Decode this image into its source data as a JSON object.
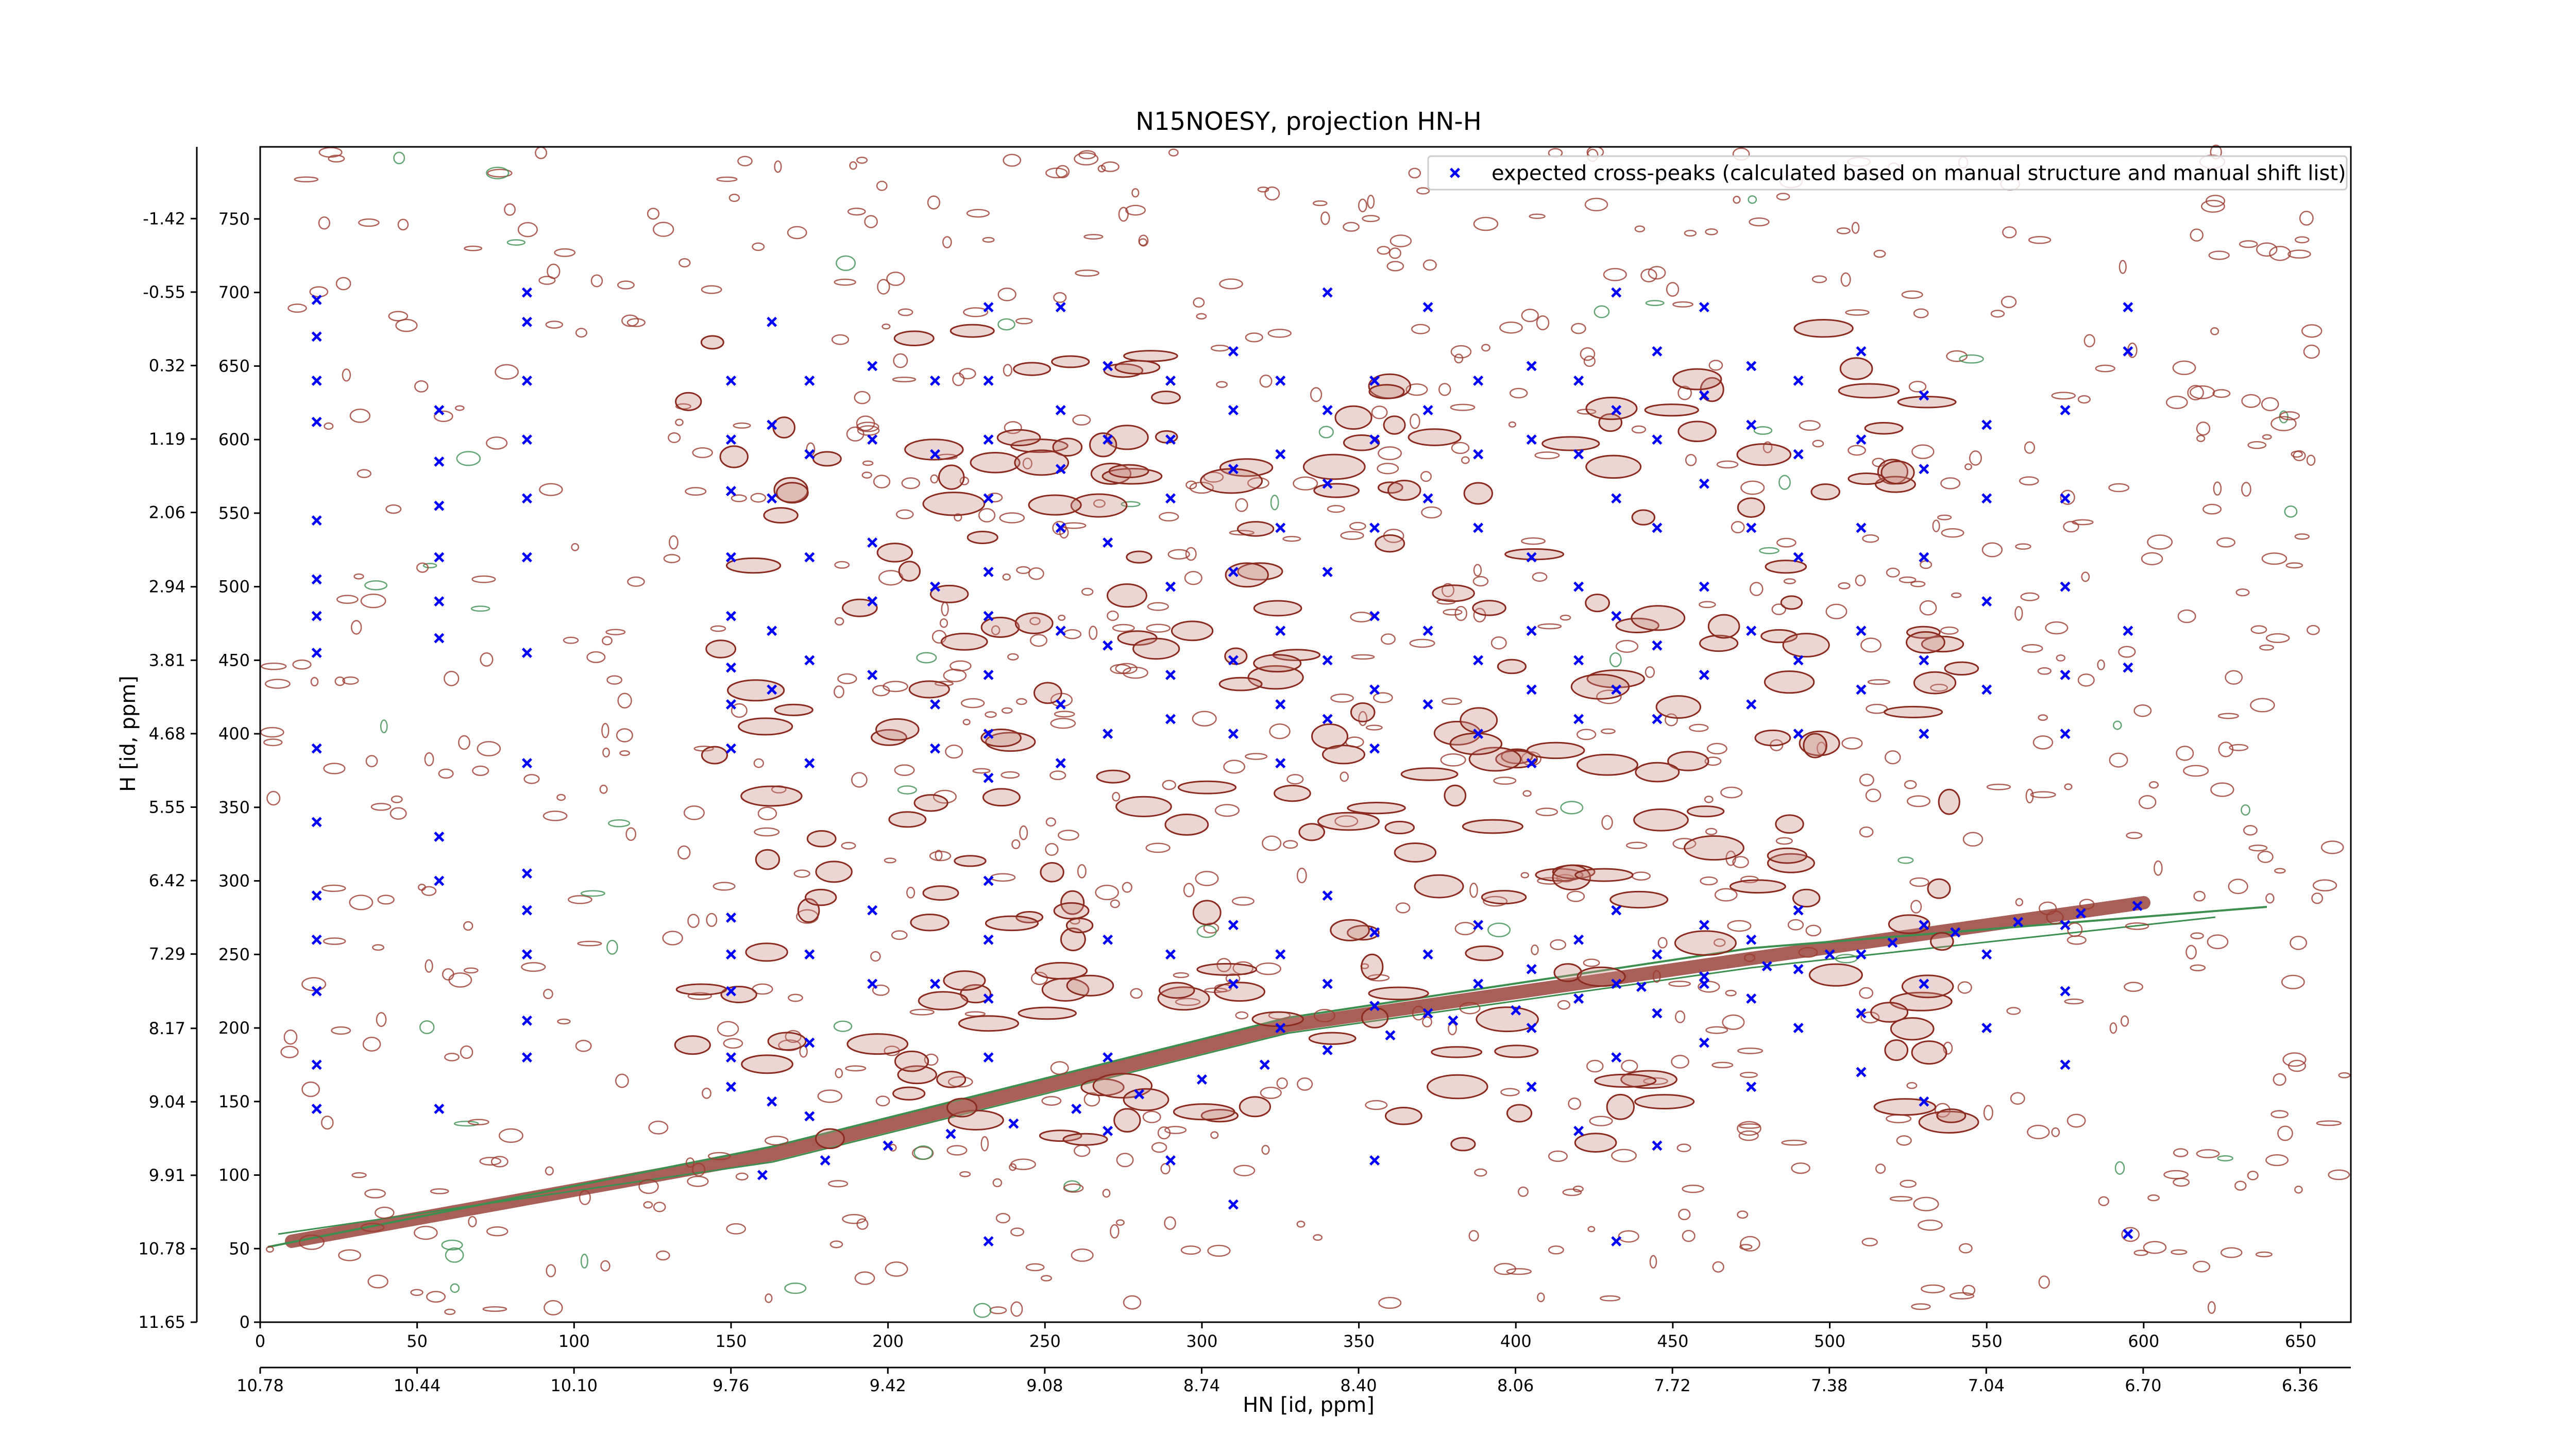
{
  "chart_data": {
    "type": "scatter",
    "title": "N15NOESY, projection HN-H",
    "xlabel": "HN [id, ppm]",
    "ylabel": "H [id, ppm]",
    "xlim": [
      0,
      666
    ],
    "ylim": [
      0,
      799
    ],
    "xticks": [
      0,
      50,
      100,
      150,
      200,
      250,
      300,
      350,
      400,
      450,
      500,
      550,
      600,
      650
    ],
    "yticks": [
      0,
      50,
      100,
      150,
      200,
      250,
      300,
      350,
      400,
      450,
      500,
      550,
      600,
      650,
      700,
      750
    ],
    "x2lim": [
      10.78,
      6.25
    ],
    "x2ticks": [
      10.78,
      10.44,
      {
        "value": 10.1,
        "label": "10.10"
      },
      9.76,
      9.42,
      9.08,
      8.74,
      {
        "value": 8.4,
        "label": "8.40"
      },
      8.06,
      7.72,
      7.38,
      7.04,
      {
        "value": 6.7,
        "label": "6.70"
      },
      6.36
    ],
    "y2lim": [
      11.65,
      -2.27
    ],
    "y2ticks": [
      11.65,
      10.78,
      9.91,
      9.04,
      8.17,
      7.29,
      6.42,
      5.55,
      4.68,
      3.81,
      2.94,
      2.06,
      1.19,
      0.32,
      -0.55,
      -1.42
    ],
    "legend": "upper right",
    "series": [
      {
        "name": "expected cross-peaks (calculated based on manual structure and manual shift list)",
        "color": "#0000ff",
        "x": [
          18,
          18,
          18,
          18,
          18,
          18,
          18,
          18,
          18,
          18,
          18,
          18,
          18,
          18,
          18,
          57,
          57,
          57,
          57,
          57,
          57,
          57,
          57,
          57,
          85,
          85,
          85,
          85,
          85,
          85,
          85,
          85,
          85,
          85,
          85,
          85,
          85,
          150,
          150,
          150,
          150,
          150,
          150,
          150,
          150,
          150,
          150,
          150,
          150,
          150,
          163,
          163,
          163,
          163,
          163,
          163,
          175,
          175,
          175,
          175,
          175,
          175,
          175,
          175,
          195,
          195,
          195,
          195,
          195,
          195,
          195,
          215,
          215,
          215,
          215,
          215,
          215,
          232,
          232,
          232,
          232,
          232,
          232,
          232,
          232,
          232,
          232,
          232,
          232,
          232,
          232,
          255,
          255,
          255,
          255,
          255,
          255,
          255,
          270,
          270,
          270,
          270,
          270,
          270,
          270,
          270,
          290,
          290,
          290,
          290,
          290,
          290,
          290,
          290,
          310,
          310,
          310,
          310,
          310,
          310,
          310,
          310,
          310,
          325,
          325,
          325,
          325,
          325,
          325,
          325,
          325,
          340,
          340,
          340,
          340,
          340,
          340,
          340,
          340,
          355,
          355,
          355,
          355,
          355,
          355,
          355,
          355,
          355,
          372,
          372,
          372,
          372,
          372,
          372,
          372,
          388,
          388,
          388,
          388,
          388,
          388,
          388,
          405,
          405,
          405,
          405,
          405,
          405,
          405,
          405,
          405,
          420,
          420,
          420,
          420,
          420,
          420,
          420,
          420,
          432,
          432,
          432,
          432,
          432,
          432,
          432,
          432,
          432,
          445,
          445,
          445,
          445,
          445,
          445,
          445,
          445,
          460,
          460,
          460,
          460,
          460,
          460,
          460,
          460,
          475,
          475,
          475,
          475,
          475,
          475,
          475,
          475,
          490,
          490,
          490,
          490,
          490,
          490,
          490,
          490,
          510,
          510,
          510,
          510,
          510,
          510,
          510,
          510,
          530,
          530,
          530,
          530,
          530,
          530,
          530,
          530,
          550,
          550,
          550,
          550,
          550,
          550,
          575,
          575,
          575,
          575,
          575,
          575,
          575,
          575,
          595,
          595,
          595,
          595,
          595,
          160,
          180,
          200,
          220,
          240,
          260,
          280,
          300,
          320,
          340,
          360,
          380,
          400,
          420,
          440,
          460,
          480,
          500,
          520,
          540,
          560,
          580,
          598
        ],
        "y": [
          695,
          670,
          640,
          612,
          545,
          505,
          480,
          455,
          390,
          340,
          290,
          260,
          225,
          175,
          145,
          620,
          585,
          555,
          520,
          490,
          465,
          330,
          300,
          145,
          700,
          680,
          640,
          600,
          560,
          520,
          455,
          380,
          305,
          280,
          250,
          205,
          180,
          640,
          600,
          565,
          520,
          480,
          445,
          420,
          390,
          275,
          250,
          225,
          180,
          160,
          680,
          610,
          560,
          470,
          430,
          150,
          640,
          590,
          520,
          450,
          380,
          250,
          190,
          140,
          650,
          600,
          530,
          490,
          440,
          280,
          230,
          640,
          590,
          500,
          420,
          390,
          230,
          690,
          640,
          600,
          560,
          510,
          480,
          440,
          400,
          370,
          300,
          260,
          220,
          180,
          55,
          690,
          620,
          580,
          540,
          470,
          420,
          380,
          650,
          600,
          530,
          460,
          400,
          260,
          180,
          130,
          640,
          600,
          560,
          500,
          440,
          410,
          250,
          110,
          660,
          620,
          580,
          510,
          450,
          400,
          270,
          230,
          80,
          640,
          590,
          540,
          470,
          420,
          380,
          250,
          200,
          700,
          620,
          570,
          510,
          450,
          410,
          290,
          230,
          640,
          600,
          540,
          480,
          430,
          390,
          265,
          215,
          110,
          690,
          620,
          560,
          470,
          420,
          250,
          210,
          640,
          590,
          540,
          450,
          400,
          270,
          230,
          650,
          600,
          520,
          470,
          430,
          380,
          240,
          200,
          160,
          640,
          590,
          500,
          450,
          410,
          260,
          220,
          130,
          700,
          620,
          560,
          480,
          430,
          280,
          230,
          180,
          55,
          660,
          600,
          540,
          460,
          410,
          250,
          210,
          120,
          690,
          630,
          570,
          500,
          440,
          270,
          230,
          190,
          650,
          610,
          540,
          470,
          420,
          260,
          220,
          160,
          640,
          590,
          520,
          450,
          400,
          280,
          240,
          200,
          660,
          600,
          540,
          470,
          430,
          250,
          210,
          170,
          630,
          580,
          520,
          450,
          400,
          270,
          230,
          150,
          610,
          560,
          490,
          430,
          250,
          200,
          620,
          560,
          500,
          440,
          400,
          270,
          225,
          175,
          690,
          660,
          470,
          445,
          60,
          100,
          110,
          120,
          128,
          135,
          145,
          155,
          165,
          175,
          185,
          195,
          205,
          212,
          220,
          228,
          235,
          242,
          250,
          258,
          265,
          272,
          278,
          283
        ]
      }
    ]
  }
}
